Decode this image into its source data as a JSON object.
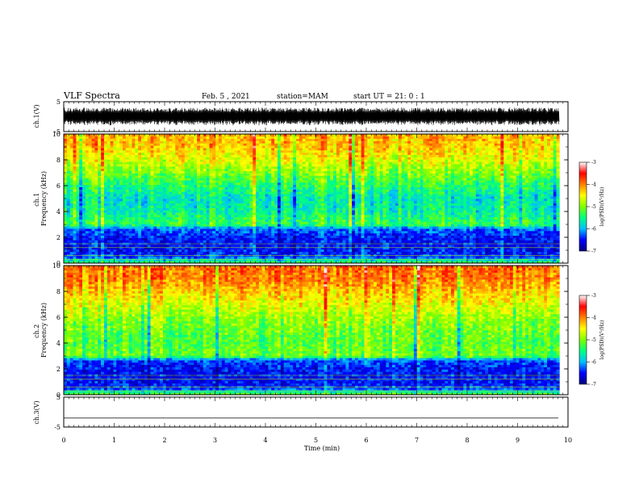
{
  "header": {
    "title": "VLF Spectra",
    "date": "Feb. 5 , 2021",
    "station": "station=MAM",
    "start": "start UT =  21: 0  : 1"
  },
  "chart_data": [
    {
      "type": "line",
      "id": "ch1-waveform",
      "ylabel": "ch.1(V)",
      "ylim": [
        -5,
        5
      ],
      "yticks": [
        "5",
        "-5"
      ],
      "xlim": [
        0,
        10
      ],
      "data_end_min": 9.83,
      "envelope": [
        -3.0,
        3.0
      ],
      "description_free": true
    },
    {
      "type": "heatmap",
      "id": "ch1-spectrogram",
      "ylabel": "ch.1\nFrequency (kHz)",
      "ylabel_lines": [
        "ch.1",
        "Frequency (kHz)"
      ],
      "ylim": [
        0,
        10
      ],
      "yticks": [
        "0",
        "2",
        "4",
        "6",
        "8",
        "10"
      ],
      "xlim": [
        0,
        10
      ],
      "data_end_min": 9.83,
      "colorbar": {
        "label": "log(PSD)(V²/Hz)",
        "range": [
          -7,
          -3
        ],
        "ticks": [
          "-3",
          "-4",
          "-5",
          "-6",
          "-7"
        ],
        "colormap": [
          "#000080",
          "#0000ff",
          "#00bfff",
          "#00ff80",
          "#80ff00",
          "#ffff00",
          "#ff8000",
          "#ff0000",
          "#ffffff"
        ]
      },
      "profile": {
        "freq_khz": [
          0.0,
          0.5,
          1.0,
          2.0,
          2.7,
          3.0,
          4.0,
          5.0,
          6.0,
          7.0,
          8.0,
          9.0,
          10.0
        ],
        "log_psd": [
          -5.2,
          -6.4,
          -6.5,
          -6.5,
          -6.2,
          -5.3,
          -5.6,
          -5.7,
          -5.4,
          -5.0,
          -4.6,
          -4.3,
          -4.2
        ]
      }
    },
    {
      "type": "heatmap",
      "id": "ch2-spectrogram",
      "ylabel": "ch.2\nFrequency (kHz)",
      "ylabel_lines": [
        "ch.2",
        "Frequency (kHz)"
      ],
      "ylim": [
        0,
        10
      ],
      "yticks": [
        "0",
        "2",
        "4",
        "6",
        "8",
        "10"
      ],
      "xlim": [
        0,
        10
      ],
      "data_end_min": 9.83,
      "colorbar": {
        "label": "log(PSD)(V²/Hz)",
        "range": [
          -7,
          -3
        ],
        "ticks": [
          "-3",
          "-4",
          "-5",
          "-6",
          "-7"
        ],
        "colormap": [
          "#000080",
          "#0000ff",
          "#00bfff",
          "#00ff80",
          "#80ff00",
          "#ffff00",
          "#ff8000",
          "#ff0000",
          "#ffffff"
        ]
      },
      "profile": {
        "freq_khz": [
          0.0,
          0.5,
          1.0,
          2.0,
          2.7,
          3.0,
          4.0,
          5.0,
          6.0,
          7.0,
          8.0,
          9.0,
          10.0
        ],
        "log_psd": [
          -5.0,
          -6.4,
          -6.5,
          -6.5,
          -6.3,
          -5.1,
          -5.2,
          -5.1,
          -4.9,
          -4.6,
          -4.3,
          -4.0,
          -3.9
        ]
      }
    },
    {
      "type": "line",
      "id": "ch3-waveform",
      "ylabel": "ch.3(V)",
      "ylim": [
        -5,
        5
      ],
      "yticks": [
        "5",
        "-5"
      ],
      "xlim": [
        0,
        10
      ],
      "constant_value": -2.0
    }
  ],
  "xaxis": {
    "label": "Time (min)",
    "ticks": [
      "0",
      "1",
      "2",
      "3",
      "4",
      "5",
      "6",
      "7",
      "8",
      "9",
      "10"
    ]
  }
}
